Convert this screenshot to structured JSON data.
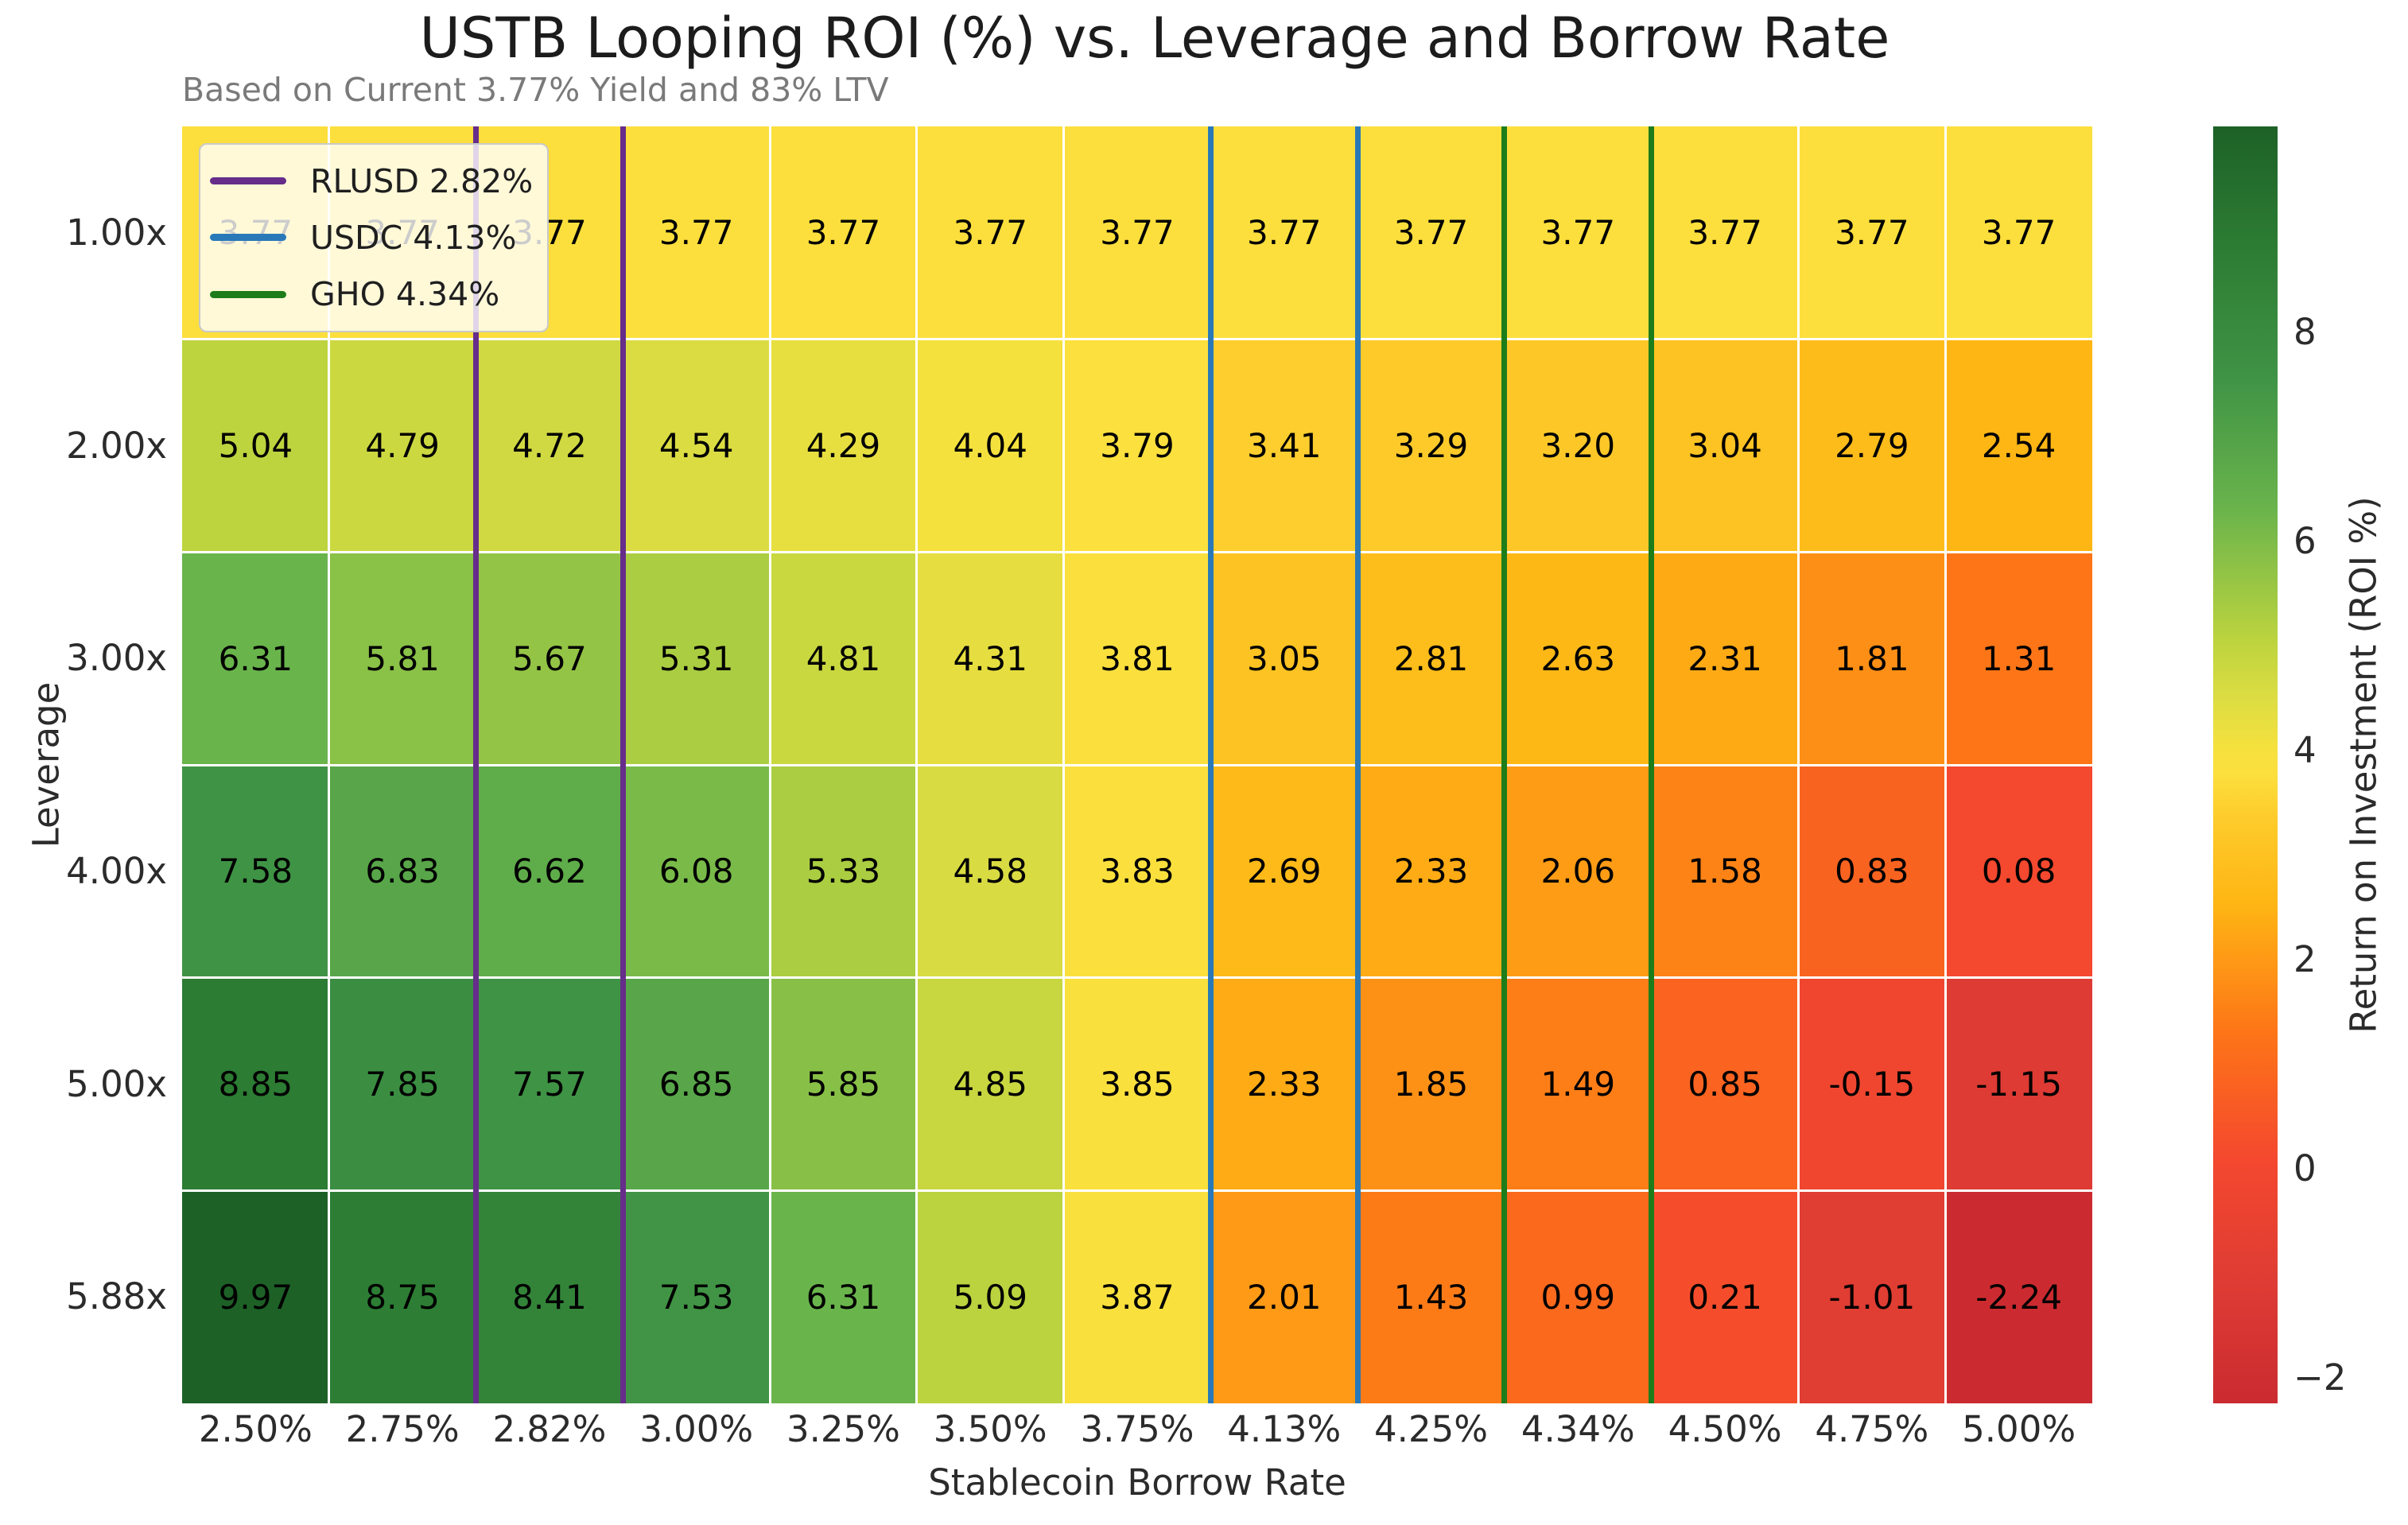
{
  "chart_data": {
    "type": "heatmap",
    "title": "USTB Looping ROI (%) vs. Leverage and Borrow Rate",
    "subtitle": "Based on Current 3.77% Yield and 83% LTV",
    "xlabel": "Stablecoin Borrow Rate",
    "ylabel": "Leverage",
    "x_categories": [
      "2.50%",
      "2.75%",
      "2.82%",
      "3.00%",
      "3.25%",
      "3.50%",
      "3.75%",
      "4.13%",
      "4.25%",
      "4.34%",
      "4.50%",
      "4.75%",
      "5.00%"
    ],
    "y_categories": [
      "1.00x",
      "2.00x",
      "3.00x",
      "4.00x",
      "5.00x",
      "5.88x"
    ],
    "values": [
      [
        3.77,
        3.77,
        3.77,
        3.77,
        3.77,
        3.77,
        3.77,
        3.77,
        3.77,
        3.77,
        3.77,
        3.77,
        3.77
      ],
      [
        5.04,
        4.79,
        4.72,
        4.54,
        4.29,
        4.04,
        3.79,
        3.41,
        3.29,
        3.2,
        3.04,
        2.79,
        2.54
      ],
      [
        6.31,
        5.81,
        5.67,
        5.31,
        4.81,
        4.31,
        3.81,
        3.05,
        2.81,
        2.63,
        2.31,
        1.81,
        1.31
      ],
      [
        7.58,
        6.83,
        6.62,
        6.08,
        5.33,
        4.58,
        3.83,
        2.69,
        2.33,
        2.06,
        1.58,
        0.83,
        0.08
      ],
      [
        8.85,
        7.85,
        7.57,
        6.85,
        5.85,
        4.85,
        3.85,
        2.33,
        1.85,
        1.49,
        0.85,
        -0.15,
        -1.15
      ],
      [
        9.97,
        8.75,
        8.41,
        7.53,
        6.31,
        5.09,
        3.87,
        2.01,
        1.43,
        0.99,
        0.21,
        -1.01,
        -2.24
      ]
    ],
    "vmin": -2.24,
    "vmax": 9.97,
    "colormap_stops": [
      {
        "t": 0.0,
        "color": "#cb2b30"
      },
      {
        "t": 0.089,
        "color": "#dd3b34"
      },
      {
        "t": 0.19,
        "color": "#f4482f"
      },
      {
        "t": 0.291,
        "color": "#fd7517"
      },
      {
        "t": 0.392,
        "color": "#feb614"
      },
      {
        "t": 0.433,
        "color": "#fdc322"
      },
      {
        "t": 0.463,
        "color": "#fdce2e"
      },
      {
        "t": 0.494,
        "color": "#fce03d"
      },
      {
        "t": 0.514,
        "color": "#f4e13e"
      },
      {
        "t": 0.556,
        "color": "#dadc42"
      },
      {
        "t": 0.596,
        "color": "#bdd43e"
      },
      {
        "t": 0.7,
        "color": "#6ab44c"
      },
      {
        "t": 0.804,
        "color": "#3f9345"
      },
      {
        "t": 0.908,
        "color": "#2c7c33"
      },
      {
        "t": 1.0,
        "color": "#1d6127"
      }
    ],
    "markers": [
      {
        "label": "RLUSD 2.82%",
        "column": "2.82%",
        "color": "#662d8a"
      },
      {
        "label": "USDC 4.13%",
        "column": "4.13%",
        "color": "#2979b9"
      },
      {
        "label": "GHO 4.34%",
        "column": "4.34%",
        "color": "#1d7d1a"
      }
    ],
    "colorbar": {
      "label": "Return on Investment (ROI %)",
      "ticks": [
        8,
        6,
        4,
        2,
        0,
        -2
      ],
      "tick_labels": [
        "8",
        "6",
        "4",
        "2",
        "0",
        "−2"
      ]
    }
  }
}
